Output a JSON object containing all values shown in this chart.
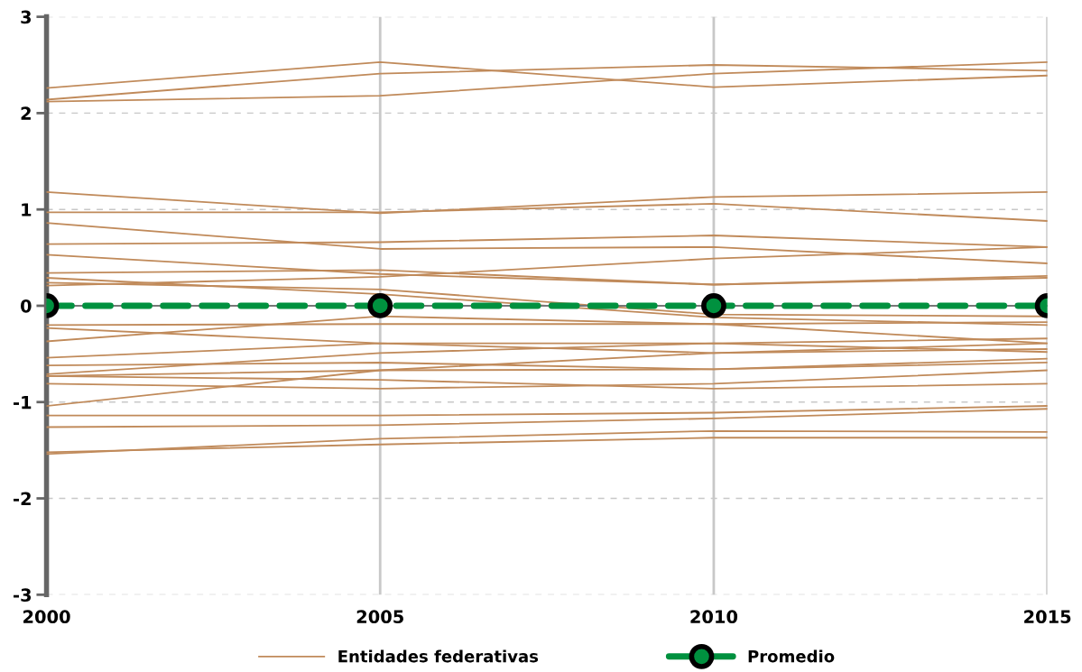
{
  "chart_data": {
    "type": "line",
    "x": [
      2000,
      2005,
      2010,
      2015
    ],
    "xlim": [
      2000,
      2015
    ],
    "xticks": [
      2000,
      2005,
      2010,
      2015
    ],
    "ylim": [
      -3,
      3
    ],
    "yticks": [
      -3,
      -2,
      -1,
      0,
      1,
      2,
      3
    ],
    "grid": true,
    "legend": "bottom",
    "marker": "none",
    "line_style": "solid",
    "series": [
      {
        "name": "Entidades federativas",
        "color": "#c08a5a",
        "values": [
          2.26,
          2.53,
          2.27,
          2.39
        ]
      },
      {
        "color": "#c08a5a",
        "values": [
          2.14,
          2.41,
          2.5,
          2.44
        ]
      },
      {
        "color": "#c08a5a",
        "values": [
          2.12,
          2.18,
          2.41,
          2.53
        ]
      },
      {
        "color": "#c08a5a",
        "values": [
          1.18,
          0.96,
          1.13,
          1.18
        ]
      },
      {
        "color": "#c08a5a",
        "values": [
          0.97,
          0.97,
          1.06,
          0.88
        ]
      },
      {
        "color": "#c08a5a",
        "values": [
          0.86,
          0.59,
          0.61,
          0.44
        ]
      },
      {
        "color": "#c08a5a",
        "values": [
          0.64,
          0.66,
          0.73,
          0.61
        ]
      },
      {
        "color": "#c08a5a",
        "values": [
          0.53,
          0.33,
          0.22,
          0.31
        ]
      },
      {
        "color": "#c08a5a",
        "values": [
          0.21,
          0.3,
          0.49,
          0.61
        ]
      },
      {
        "color": "#c08a5a",
        "values": [
          0.34,
          0.37,
          0.22,
          0.29
        ]
      },
      {
        "color": "#c08a5a",
        "values": [
          0.24,
          0.17,
          -0.09,
          -0.11
        ]
      },
      {
        "color": "#c08a5a",
        "values": [
          0.29,
          0.12,
          -0.12,
          -0.2
        ]
      },
      {
        "color": "#c08a5a",
        "values": [
          -0.2,
          -0.19,
          -0.19,
          -0.17
        ]
      },
      {
        "color": "#c08a5a",
        "values": [
          -0.23,
          -0.39,
          -0.39,
          -0.34
        ]
      },
      {
        "color": "#c08a5a",
        "values": [
          -0.37,
          -0.11,
          -0.19,
          -0.39
        ]
      },
      {
        "color": "#c08a5a",
        "values": [
          -0.54,
          -0.39,
          -0.49,
          -0.45
        ]
      },
      {
        "color": "#c08a5a",
        "values": [
          -0.62,
          -0.59,
          -0.66,
          -0.55
        ]
      },
      {
        "color": "#c08a5a",
        "values": [
          -0.71,
          -0.49,
          -0.39,
          -0.48
        ]
      },
      {
        "color": "#c08a5a",
        "values": [
          -0.73,
          -0.67,
          -0.66,
          -0.59
        ]
      },
      {
        "color": "#c08a5a",
        "values": [
          -0.81,
          -0.86,
          -0.81,
          -0.67
        ]
      },
      {
        "color": "#c08a5a",
        "values": [
          -0.73,
          -0.77,
          -0.86,
          -0.81
        ]
      },
      {
        "color": "#c08a5a",
        "values": [
          -1.04,
          -0.67,
          -0.49,
          -0.39
        ]
      },
      {
        "color": "#c08a5a",
        "values": [
          -1.14,
          -1.14,
          -1.11,
          -1.04
        ]
      },
      {
        "color": "#c08a5a",
        "values": [
          -1.26,
          -1.24,
          -1.17,
          -1.07
        ]
      },
      {
        "color": "#c08a5a",
        "values": [
          -1.52,
          -1.44,
          -1.37,
          -1.37
        ]
      },
      {
        "color": "#c08a5a",
        "values": [
          -1.54,
          -1.38,
          -1.3,
          -1.31
        ]
      },
      {
        "name": "Promedio",
        "color": "#00913f",
        "values": [
          0,
          0,
          0,
          0
        ],
        "marker": "circle",
        "line_style": "dashed"
      }
    ]
  }
}
